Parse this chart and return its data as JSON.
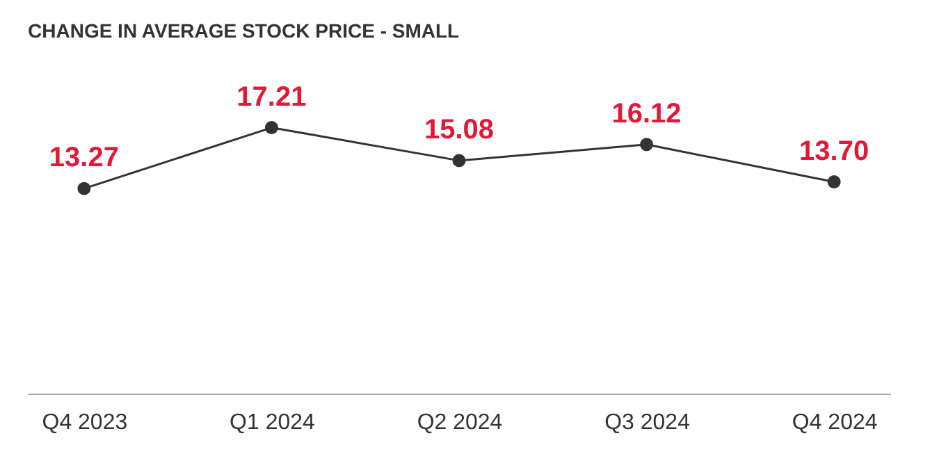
{
  "chart_data": {
    "type": "line",
    "title": "CHANGE IN AVERAGE STOCK PRICE - SMALL",
    "categories": [
      "Q4 2023",
      "Q1 2024",
      "Q2 2024",
      "Q3 2024",
      "Q4 2024"
    ],
    "series": [
      {
        "color": "#333333",
        "values": [
          13.27,
          17.21,
          15.08,
          16.12,
          13.7
        ],
        "value_labels": [
          "13.27",
          "17.21",
          "15.08",
          "16.12",
          "13.70"
        ]
      }
    ],
    "data_labels": true,
    "marker": "circle",
    "grid": false,
    "legend": false
  }
}
